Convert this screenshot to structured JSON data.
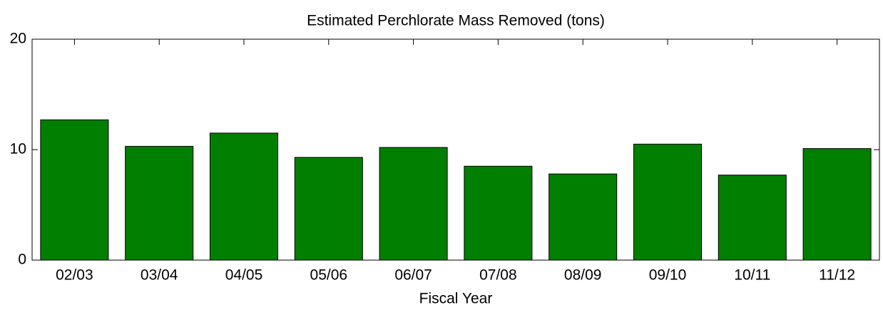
{
  "chart_data": {
    "type": "bar",
    "title": "Estimated Perchlorate Mass Removed (tons)",
    "x_label": "Fiscal Year",
    "categories": [
      "02/03",
      "03/04",
      "04/05",
      "05/06",
      "06/07",
      "07/08",
      "08/09",
      "09/10",
      "10/11",
      "11/12"
    ],
    "values": [
      12.7,
      10.3,
      11.5,
      9.3,
      10.2,
      8.5,
      7.8,
      10.5,
      7.7,
      10.1
    ],
    "color": "#007f00",
    "ylim": [
      0,
      20
    ],
    "yticks": [
      0,
      10,
      20
    ],
    "grid": false
  }
}
